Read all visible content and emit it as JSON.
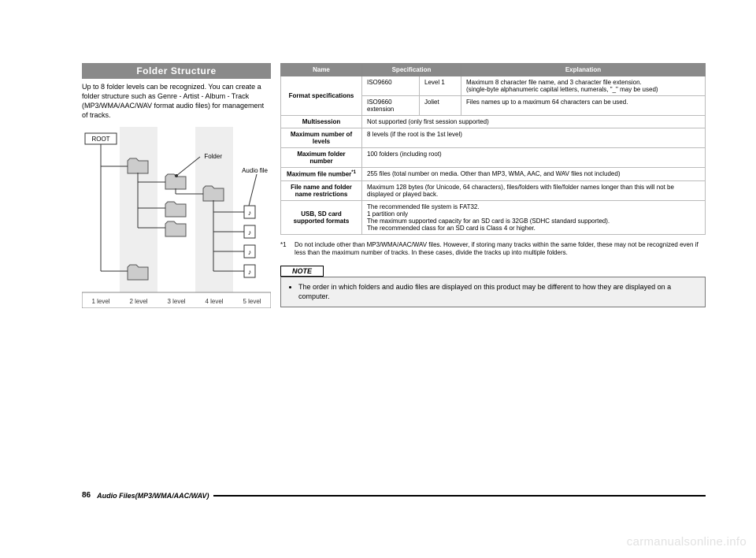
{
  "left": {
    "header": "Folder Structure",
    "body": "Up to 8 folder levels can be recognized. You can create a folder structure such as Genre - Artist - Album - Track (MP3/WMA/AAC/WAV format audio files) for management of tracks.",
    "diagram": {
      "root": "ROOT",
      "folder_label": "Folder",
      "audio_label": "Audio file",
      "levels": [
        "1 level",
        "2 level",
        "3 level",
        "4 level",
        "5 level"
      ],
      "stripe_light": "#ffffff",
      "stripe_dark": "#eeeeee",
      "folder_fill": "#cccccc",
      "folder_stroke": "#555555",
      "line_color": "#333333"
    }
  },
  "table": {
    "headers": [
      "Name",
      "Specification",
      "Explanation"
    ],
    "rows": [
      {
        "name": "Format specifications",
        "sub": [
          {
            "spec": "ISO9660",
            "mid": "Level 1",
            "exp": "Maximum 8 character file name, and 3 character file extension.\n(single-byte alphanumeric capital letters, numerals, \"_\" may be used)"
          },
          {
            "spec": "ISO9660 extension",
            "mid": "Joliet",
            "exp": "Files names up to a maximum 64 characters can be used."
          }
        ]
      },
      {
        "name": "Multisession",
        "exp": "Not supported (only first session supported)"
      },
      {
        "name": "Maximum number of levels",
        "exp": "8 levels (if the root is the 1st level)"
      },
      {
        "name": "Maximum folder number",
        "exp": "100 folders (including root)"
      },
      {
        "name": "Maximum file number",
        "sup": "*1",
        "exp": "255 files (total number on media. Other than MP3, WMA, AAC, and WAV files not included)"
      },
      {
        "name": "File name and folder name restrictions",
        "exp": "Maximum 128 bytes (for Unicode, 64 characters), files/folders with file/folder names longer than this will not be displayed or played back."
      },
      {
        "name": "USB, SD card supported formats",
        "exp": "The recommended file system is FAT32.\n 1 partition only\nThe maximum supported capacity for an SD card is 32GB (SDHC standard supported).\nThe recommended class for an SD card is Class 4 or higher."
      }
    ]
  },
  "footnote": {
    "num": "*1",
    "text": "Do not include other than MP3/WMA/AAC/WAV files. However, if storing many tracks within the same folder, these may not be recognized even if less than the maximum number of tracks. In these cases, divide the tracks up into multiple folders."
  },
  "note": {
    "label": "NOTE",
    "text": "The order in which folders and audio files are displayed on this product may be different to how they are displayed on a computer."
  },
  "footer": {
    "page": "86",
    "title": "Audio Files(MP3/WMA/AAC/WAV)"
  },
  "watermark": "carmanualsonline.info"
}
